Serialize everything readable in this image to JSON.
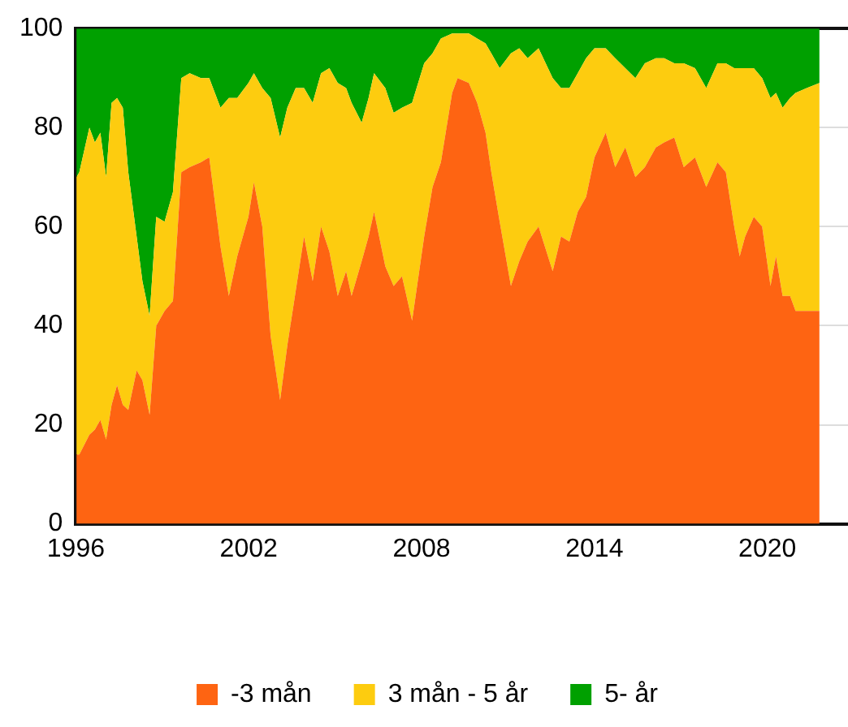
{
  "chart_data": {
    "type": "area",
    "stacked": true,
    "x": [
      1996.02,
      1996.12,
      1996.47,
      1996.66,
      1996.85,
      1997.05,
      1997.24,
      1997.43,
      1997.63,
      1997.82,
      1998.11,
      1998.31,
      1998.56,
      1998.79,
      1999.08,
      1999.37,
      1999.66,
      1999.95,
      2000.34,
      2000.63,
      2001.02,
      2001.31,
      2001.6,
      2001.99,
      2002.18,
      2002.47,
      2002.76,
      2003.09,
      2003.34,
      2003.63,
      2003.92,
      2004.22,
      2004.51,
      2004.8,
      2005.09,
      2005.38,
      2005.57,
      2005.92,
      2006.16,
      2006.35,
      2006.74,
      2007.03,
      2007.32,
      2007.67,
      2008.09,
      2008.38,
      2008.67,
      2009.06,
      2009.25,
      2009.64,
      2009.93,
      2010.22,
      2010.42,
      2010.71,
      2011.1,
      2011.39,
      2011.68,
      2012.06,
      2012.55,
      2012.84,
      2013.13,
      2013.42,
      2013.71,
      2014.0,
      2014.39,
      2014.72,
      2015.07,
      2015.42,
      2015.75,
      2016.13,
      2016.42,
      2016.77,
      2017.1,
      2017.49,
      2017.88,
      2018.27,
      2018.56,
      2018.85,
      2019.04,
      2019.23,
      2019.53,
      2019.82,
      2020.11,
      2020.3,
      2020.53,
      2020.79,
      2020.98,
      2021.37,
      2021.81
    ],
    "series": [
      {
        "name": "-3 mån",
        "color": "#fe6412",
        "values": [
          14,
          14,
          18,
          19,
          21,
          17,
          24,
          28,
          24,
          23,
          31,
          29,
          22,
          40,
          43,
          45,
          71,
          72,
          73,
          74,
          56,
          46,
          54,
          62,
          69,
          60,
          38,
          25,
          36,
          47,
          58,
          49,
          60,
          55,
          46,
          51,
          46,
          53,
          58,
          63,
          52,
          48,
          50,
          41,
          58,
          68,
          73,
          87,
          90,
          89,
          85,
          79,
          71,
          61,
          48,
          53,
          57,
          60,
          51,
          58,
          57,
          63,
          66,
          74,
          79,
          72,
          76,
          70,
          72,
          76,
          77,
          78,
          72,
          74,
          68,
          73,
          71,
          60,
          54,
          58,
          62,
          60,
          48,
          54,
          46,
          46,
          43,
          43,
          43
        ]
      },
      {
        "name": "3 mån - 5 år",
        "color": "#fdcc0f",
        "values": [
          56,
          57,
          62,
          58,
          58,
          53,
          61,
          58,
          60,
          48,
          27,
          20,
          20,
          22,
          18,
          22,
          19,
          19,
          17,
          16,
          28,
          40,
          32,
          27,
          22,
          28,
          48,
          53,
          48,
          41,
          30,
          36,
          31,
          37,
          43,
          37,
          39,
          28,
          28,
          28,
          36,
          35,
          34,
          44,
          35,
          27,
          25,
          12,
          9,
          10,
          13,
          18,
          24,
          31,
          47,
          43,
          37,
          36,
          39,
          30,
          31,
          28,
          28,
          22,
          17,
          22,
          16,
          20,
          21,
          18,
          17,
          15,
          21,
          18,
          20,
          20,
          22,
          32,
          38,
          34,
          30,
          30,
          38,
          33,
          38,
          40,
          44,
          45,
          46
        ]
      },
      {
        "name": "5- år",
        "color": "#00a000",
        "values": [
          30,
          29,
          20,
          23,
          21,
          30,
          15,
          14,
          16,
          29,
          42,
          51,
          58,
          38,
          39,
          33,
          10,
          9,
          10,
          10,
          16,
          14,
          14,
          11,
          9,
          12,
          14,
          22,
          16,
          12,
          12,
          15,
          9,
          8,
          11,
          12,
          15,
          19,
          14,
          9,
          12,
          17,
          16,
          15,
          7,
          5,
          2,
          1,
          1,
          1,
          2,
          3,
          5,
          8,
          5,
          4,
          6,
          4,
          10,
          12,
          12,
          9,
          6,
          4,
          4,
          6,
          8,
          10,
          7,
          6,
          6,
          7,
          7,
          8,
          12,
          7,
          7,
          8,
          8,
          8,
          8,
          10,
          14,
          13,
          16,
          14,
          13,
          12,
          11
        ]
      }
    ],
    "xlim": [
      1996,
      2022.8
    ],
    "xticks": [
      1996,
      2002,
      2008,
      2014,
      2020
    ],
    "ylim": [
      0,
      100
    ],
    "yticks": [
      0,
      20,
      40,
      60,
      80,
      100
    ],
    "grid": "y",
    "legend": "bottom"
  }
}
